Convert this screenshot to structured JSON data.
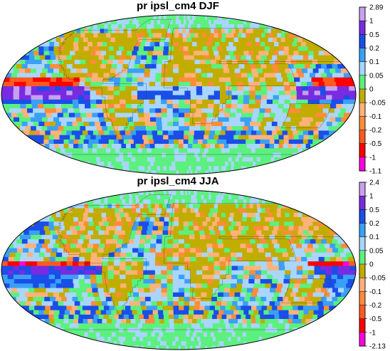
{
  "panels": [
    {
      "title": "pr ipsl_cm4 DJF",
      "colorbar_labels": [
        "2.89",
        "1",
        "0.5",
        "0.2",
        "0.1",
        "0.05",
        "0",
        "-0.05",
        "-0.1",
        "-0.2",
        "-0.5",
        "-1",
        "-1.1"
      ]
    },
    {
      "title": "pr ipsl_cm4 JJA",
      "colorbar_labels": [
        "2.4",
        "1",
        "0.5",
        "0.2",
        "0.1",
        "0.05",
        "0",
        "-0.05",
        "-0.1",
        "-0.2",
        "-0.5",
        "-1",
        "-2.13"
      ]
    }
  ],
  "colorbar_colors": [
    "#c9a0f0",
    "#7a2be0",
    "#1a4ee8",
    "#3aa0f5",
    "#a9d6ff",
    "#5cf07f",
    "#c1ad00",
    "#ffb27a",
    "#ff8c3a",
    "#ff5a1f",
    "#ff0000",
    "#ff00e0"
  ],
  "land_color": "#c1ad00",
  "ocean_color": "#a9d6ff"
}
